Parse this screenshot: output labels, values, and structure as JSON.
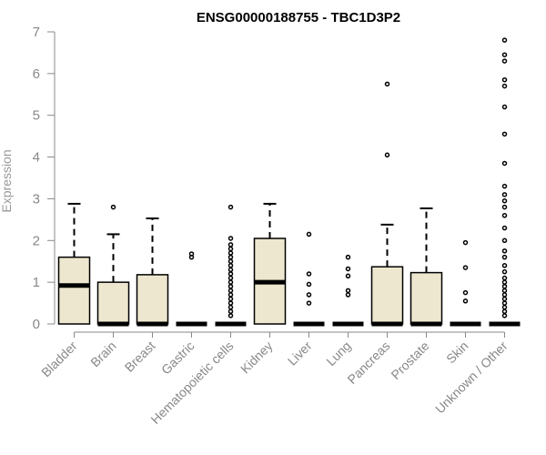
{
  "chart_data": {
    "type": "boxplot",
    "title": "ENSG00000188755 - TBC1D3P2",
    "ylabel": "Expression",
    "xlabel": "",
    "ylim": [
      0,
      7
    ],
    "yticks": [
      0,
      1,
      2,
      3,
      4,
      5,
      6,
      7
    ],
    "grid": false,
    "box_fill": "#ede7cf",
    "line_color": "#000000",
    "categories": [
      "Bladder",
      "Brain",
      "Breast",
      "Gastric",
      "Hematopoietic cells",
      "Kidney",
      "Liver",
      "Lung",
      "Pancreas",
      "Prostate",
      "Skin",
      "Unknown / Other"
    ],
    "boxes": [
      {
        "q1": 0,
        "median": 0.92,
        "q3": 1.6,
        "whisker_low": 0,
        "whisker_high": 2.88,
        "outliers": []
      },
      {
        "q1": 0,
        "median": 0,
        "q3": 1.0,
        "whisker_low": 0,
        "whisker_high": 2.15,
        "outliers": [
          2.8
        ]
      },
      {
        "q1": 0,
        "median": 0,
        "q3": 1.18,
        "whisker_low": 0,
        "whisker_high": 2.53,
        "outliers": []
      },
      {
        "q1": 0,
        "median": 0,
        "q3": 0,
        "whisker_low": 0,
        "whisker_high": 0,
        "outliers": [
          1.6,
          1.68
        ]
      },
      {
        "q1": 0,
        "median": 0,
        "q3": 0,
        "whisker_low": 0,
        "whisker_high": 0,
        "outliers": [
          0.2,
          0.3,
          0.4,
          0.5,
          0.6,
          0.7,
          0.8,
          0.9,
          1.0,
          1.1,
          1.2,
          1.3,
          1.4,
          1.5,
          1.6,
          1.7,
          1.8,
          1.9,
          2.05,
          2.8
        ]
      },
      {
        "q1": 0,
        "median": 1.0,
        "q3": 2.05,
        "whisker_low": 0,
        "whisker_high": 2.88,
        "outliers": []
      },
      {
        "q1": 0,
        "median": 0,
        "q3": 0,
        "whisker_low": 0,
        "whisker_high": 0,
        "outliers": [
          0.5,
          0.7,
          0.95,
          1.2,
          2.15
        ]
      },
      {
        "q1": 0,
        "median": 0,
        "q3": 0,
        "whisker_low": 0,
        "whisker_high": 0,
        "outliers": [
          0.7,
          0.8,
          1.15,
          1.32,
          1.6
        ]
      },
      {
        "q1": 0,
        "median": 0,
        "q3": 1.37,
        "whisker_low": 0,
        "whisker_high": 2.38,
        "outliers": [
          4.05,
          5.75
        ]
      },
      {
        "q1": 0,
        "median": 0,
        "q3": 1.23,
        "whisker_low": 0,
        "whisker_high": 2.77,
        "outliers": []
      },
      {
        "q1": 0,
        "median": 0,
        "q3": 0,
        "whisker_low": 0,
        "whisker_high": 0,
        "outliers": [
          0.55,
          0.75,
          1.35,
          1.95
        ]
      },
      {
        "q1": 0,
        "median": 0,
        "q3": 0,
        "whisker_low": 0,
        "whisker_high": 0,
        "outliers": [
          0.2,
          0.3,
          0.4,
          0.5,
          0.6,
          0.7,
          0.8,
          0.9,
          1.0,
          1.1,
          1.25,
          1.4,
          1.6,
          1.75,
          2.0,
          2.3,
          2.6,
          2.8,
          2.95,
          3.1,
          3.3,
          3.85,
          4.55,
          5.2,
          5.7,
          5.85,
          6.3,
          6.45,
          6.8
        ]
      }
    ]
  }
}
